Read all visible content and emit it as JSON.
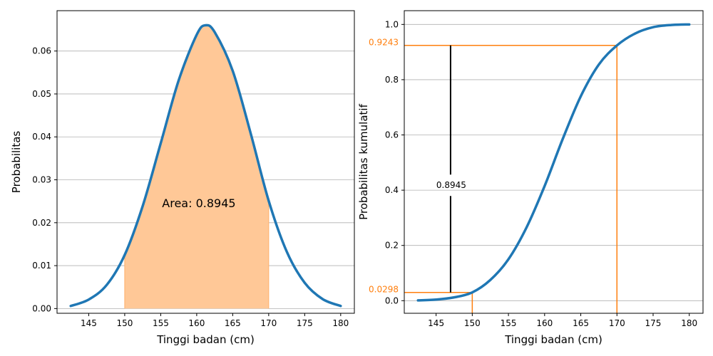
{
  "chart_data": [
    {
      "type": "area",
      "xlabel": "Tinggi badan (cm)",
      "ylabel": "Probabilitas",
      "xlim": [
        140.6,
        181.9
      ],
      "ylim": [
        -0.0011,
        0.0694
      ],
      "xticks": [
        145,
        150,
        155,
        160,
        165,
        170,
        175,
        180
      ],
      "yticks": [
        0.0,
        0.01,
        0.02,
        0.03,
        0.04,
        0.05,
        0.06
      ],
      "ytick_labels": [
        "0.00",
        "0.01",
        "0.02",
        "0.03",
        "0.04",
        "0.05",
        "0.06"
      ],
      "grid": "horizontal",
      "series": [
        {
          "color": "#1f77b4",
          "x": [
            142.5,
            145,
            147.5,
            150,
            152.5,
            155,
            157.5,
            160,
            161.2,
            162.5,
            165,
            167.5,
            170,
            172.5,
            175,
            177.5,
            180
          ],
          "y": [
            0.0006,
            0.0021,
            0.0055,
            0.0125,
            0.0239,
            0.0385,
            0.0532,
            0.0638,
            0.066,
            0.0644,
            0.0554,
            0.0408,
            0.0251,
            0.0133,
            0.006,
            0.0022,
            0.0006
          ]
        }
      ],
      "shaded_region": {
        "from": 150,
        "to": 170,
        "color": "#ffc897"
      },
      "annotation": {
        "text": "Area: 0.8945",
        "x": 160.3,
        "y": 0.0236
      }
    },
    {
      "type": "line",
      "xlabel": "Tinggi badan (cm)",
      "ylabel": "Probabilitas kumulatif",
      "xlim": [
        140.6,
        181.9
      ],
      "ylim": [
        -0.0456,
        1.0498
      ],
      "xticks": [
        145,
        150,
        155,
        160,
        165,
        170,
        175,
        180
      ],
      "yticks": [
        0.0,
        0.2,
        0.4,
        0.6,
        0.8,
        1.0
      ],
      "ytick_labels": [
        "0.0",
        "0.2",
        "0.4",
        "0.6",
        "0.8",
        "1.0"
      ],
      "grid": "horizontal",
      "series": [
        {
          "color": "#1f77b4",
          "x": [
            142.5,
            145,
            147.5,
            150,
            152.5,
            155,
            157.5,
            160,
            162.5,
            165,
            167.5,
            170,
            172.5,
            175,
            177.5,
            180
          ],
          "y": [
            0.001,
            0.004,
            0.012,
            0.03,
            0.075,
            0.15,
            0.265,
            0.415,
            0.585,
            0.74,
            0.855,
            0.924,
            0.967,
            0.99,
            0.998,
            1.0
          ]
        }
      ],
      "reference_lines": [
        {
          "x": 150,
          "y": 0.0298,
          "label": "0.0298"
        },
        {
          "x": 170,
          "y": 0.9243,
          "label": "0.9243"
        }
      ],
      "reference_color": "#ff7f0e",
      "difference": {
        "x": 147,
        "from": 0.0298,
        "to": 0.9243,
        "label": "0.8945"
      }
    }
  ]
}
